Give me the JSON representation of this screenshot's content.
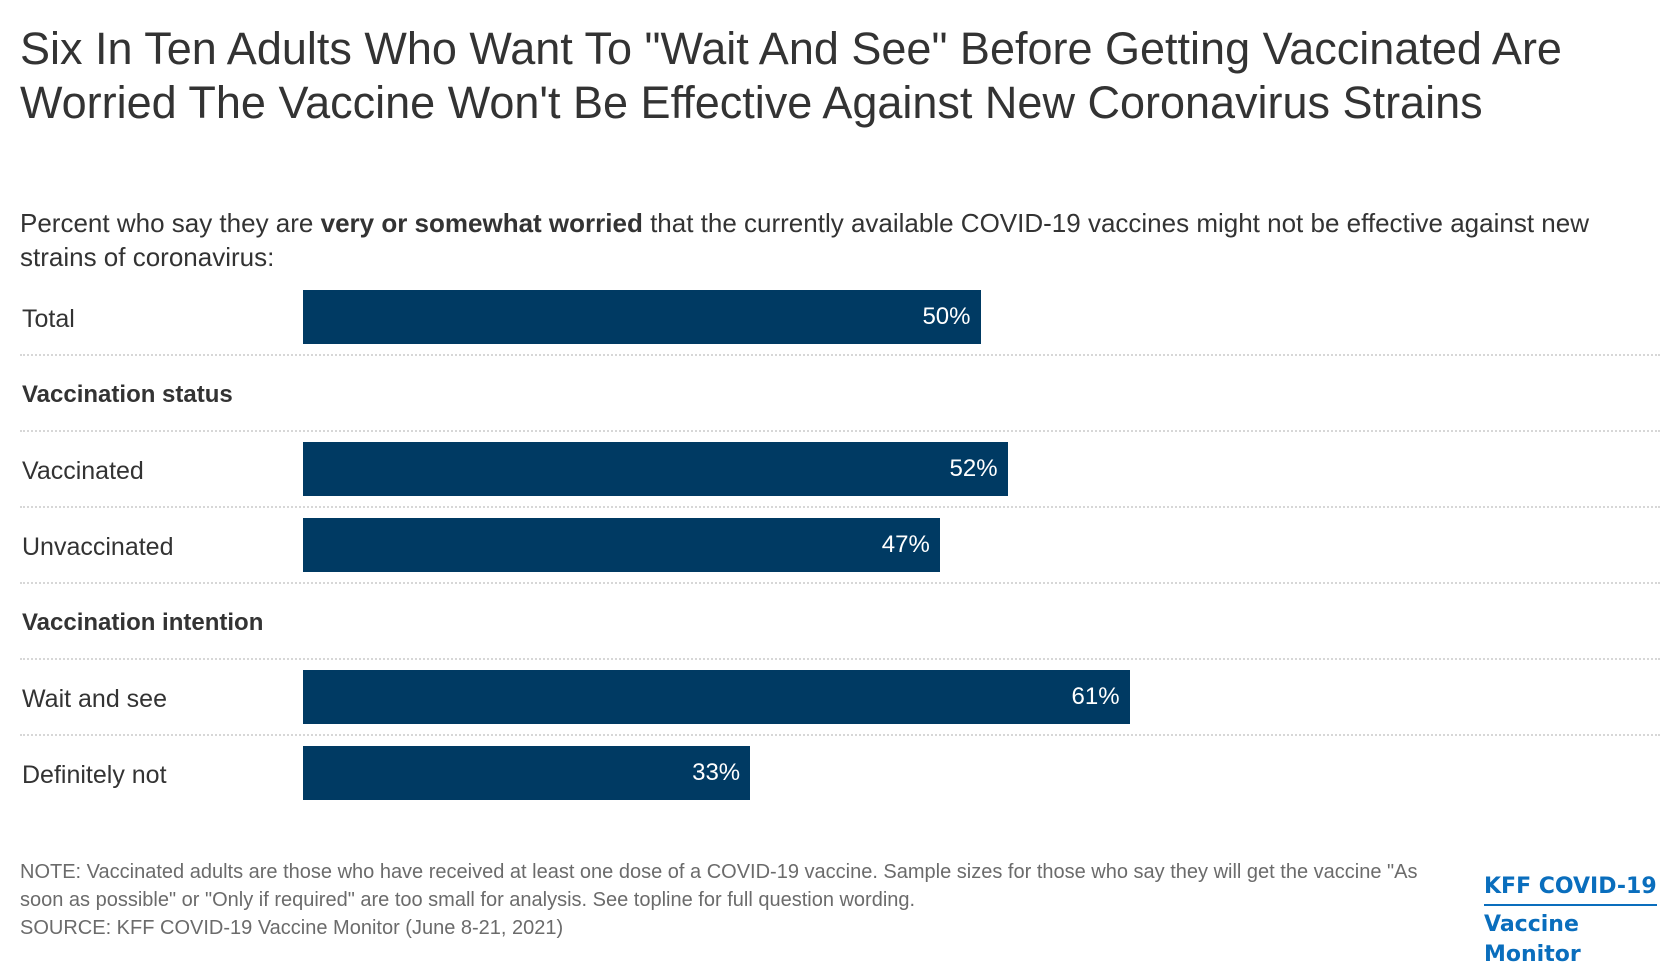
{
  "title": "Six In Ten Adults Who Want To \"Wait And See\" Before Getting Vaccinated Are Worried The Vaccine Won't Be Effective Against New Coronavirus Strains",
  "subtitle": {
    "prefix": "Percent who say they are ",
    "bold": "very or somewhat worried",
    "suffix": " that the currently available COVID-19 vaccines might not be effective against new strains of coronavirus:"
  },
  "colors": {
    "bar": "#003a63",
    "logo": "#0a6ebd"
  },
  "chart_data": {
    "type": "bar",
    "orientation": "horizontal",
    "xlim": [
      0,
      100
    ],
    "grid": false,
    "rows": [
      {
        "kind": "bar",
        "label": "Total",
        "value": 50,
        "value_label": "50%"
      },
      {
        "kind": "group",
        "label": "Vaccination status"
      },
      {
        "kind": "bar",
        "label": "Vaccinated",
        "value": 52,
        "value_label": "52%"
      },
      {
        "kind": "bar",
        "label": "Unvaccinated",
        "value": 47,
        "value_label": "47%"
      },
      {
        "kind": "group",
        "label": "Vaccination intention"
      },
      {
        "kind": "bar",
        "label": "Wait and see",
        "value": 61,
        "value_label": "61%"
      },
      {
        "kind": "bar",
        "label": "Definitely not",
        "value": 33,
        "value_label": "33%"
      }
    ]
  },
  "notes": {
    "note": "NOTE: Vaccinated adults are those who have received at least one dose of a COVID-19 vaccine. Sample sizes for those who say they will get the vaccine \"As soon as possible\" or \"Only if required\" are too small for analysis. See topline for full question wording.",
    "source": "SOURCE: KFF COVID-19 Vaccine Monitor (June 8-21, 2021)"
  },
  "logo": {
    "line1": "KFF COVID-19",
    "line2": "Vaccine Monitor"
  }
}
